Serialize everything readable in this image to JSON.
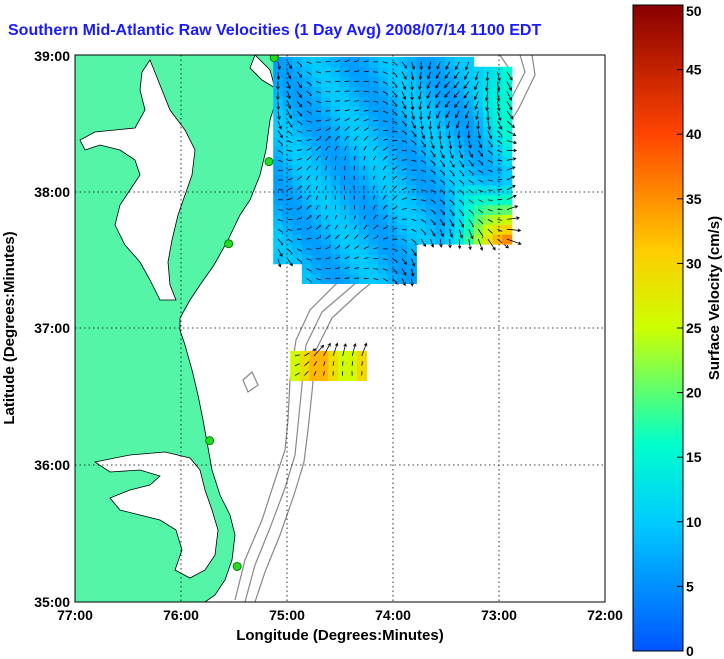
{
  "chart_data": {
    "type": "heatmap",
    "title": "Southern Mid-Atlantic Raw Velocities (1 Day Avg) 2008/07/14 1100 EDT",
    "xlabel": "Longitude (Degrees:Minutes)",
    "ylabel": "Latitude (Degrees:Minutes)",
    "colorbar_label": "Surface Velocity (cm/s)",
    "x_ticks": [
      "77:00",
      "76:00",
      "75:00",
      "74:00",
      "73:00",
      "72:00"
    ],
    "y_ticks": [
      "39:00",
      "38:00",
      "37:00",
      "36:00",
      "35:00"
    ],
    "colorbar_ticks": [
      "0",
      "5",
      "10",
      "15",
      "20",
      "25",
      "30",
      "35",
      "40",
      "45",
      "50"
    ],
    "xlim": [
      -77,
      -72
    ],
    "ylim": [
      35,
      39
    ],
    "clim": [
      0,
      50
    ],
    "grid": true,
    "colors": {
      "land": "#55f5a8",
      "title": "#1a1aff",
      "station": "#22dd22"
    },
    "stations": [
      {
        "lon": -75.12,
        "lat": 38.98
      },
      {
        "lon": -75.17,
        "lat": 38.22
      },
      {
        "lon": -75.55,
        "lat": 37.62
      },
      {
        "lon": -75.73,
        "lat": 36.18
      },
      {
        "lon": -75.47,
        "lat": 35.26
      }
    ],
    "velocity_regions": [
      {
        "name": "main",
        "lon": [
          -75.13,
          -72.95
        ],
        "lat": [
          37.33,
          38.98
        ],
        "typical_speed": 8,
        "max_speed": 35
      },
      {
        "name": "south",
        "lon": [
          -74.97,
          -74.25
        ],
        "lat": [
          36.62,
          36.8
        ],
        "typical_speed": 30,
        "max_speed": 35
      }
    ]
  }
}
